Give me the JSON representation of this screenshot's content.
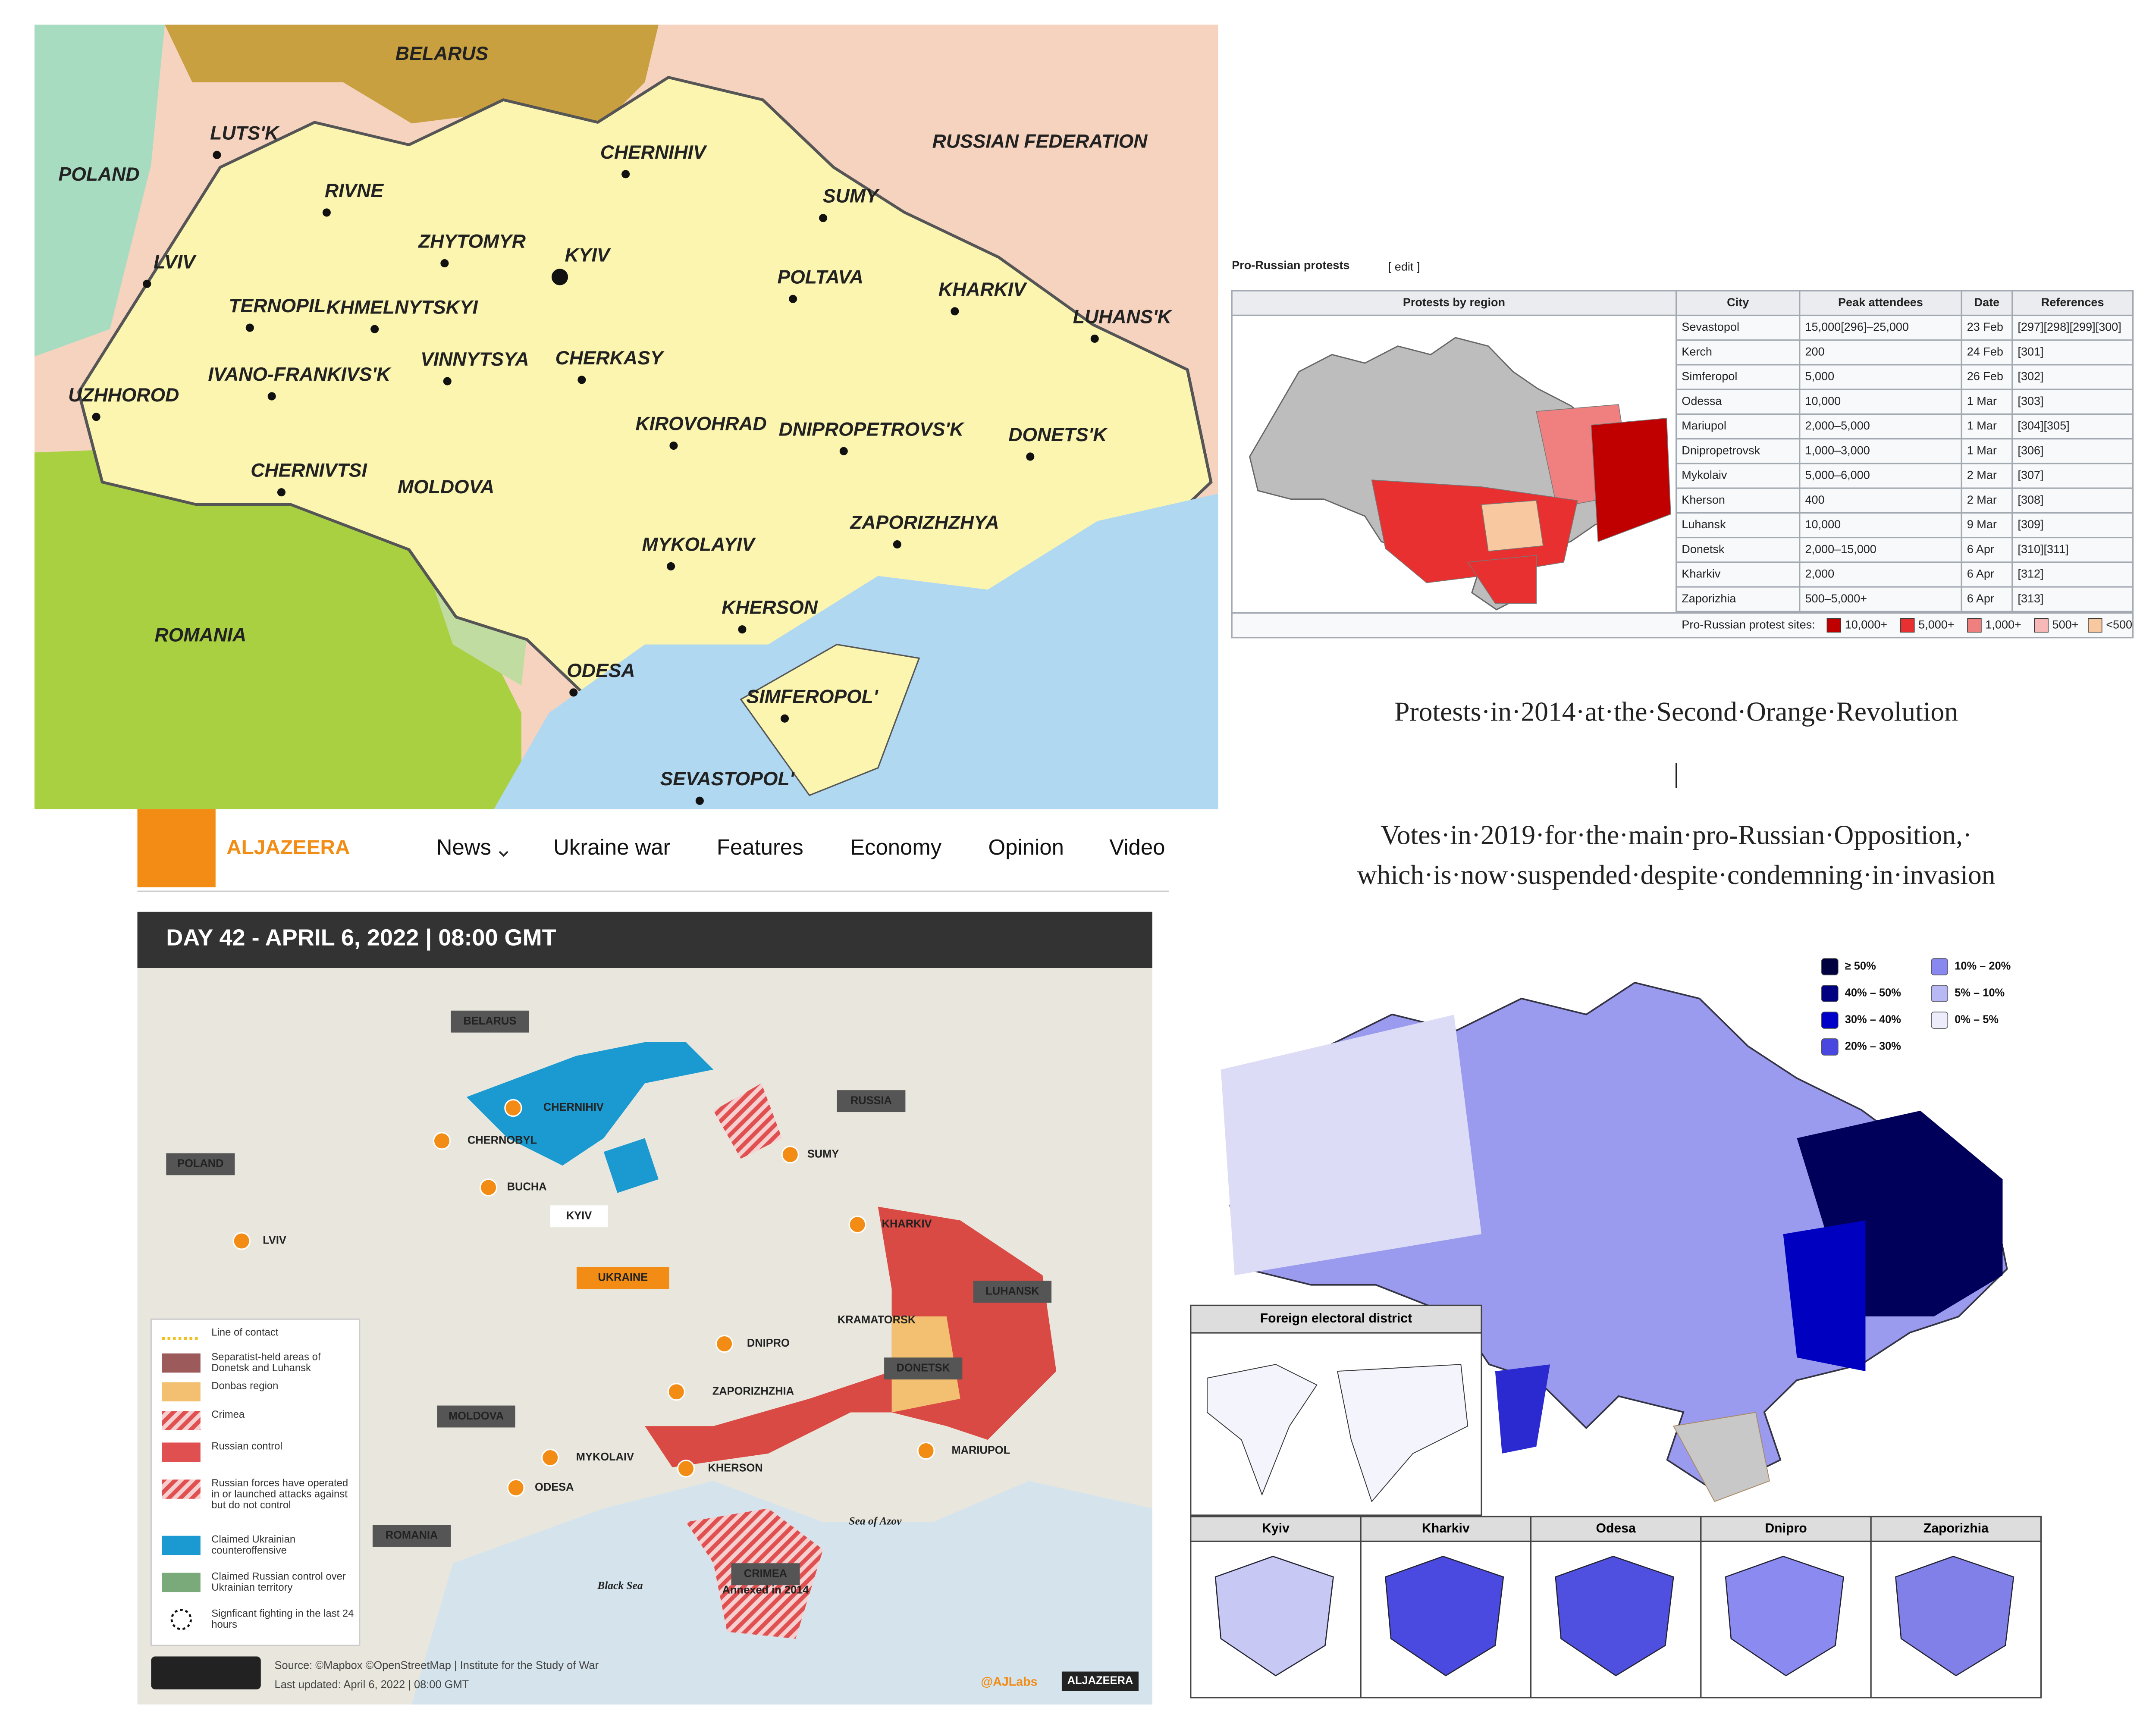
{
  "map1": {
    "labels": [
      "BELARUS",
      "RUSSIAN FEDERATION",
      "POLAND",
      "MOLDOVA",
      "ROMANIA",
      "LUTS'K",
      "RIVNE",
      "CHERNIHIV",
      "SUMY",
      "ZHYTOMYR",
      "KYIV",
      "LVIV",
      "POLTAVA",
      "KHARKIV",
      "TERNOPIL",
      "KHMELNYTSKYI",
      "LUHANS'K",
      "VINNYTSYA",
      "CHERKASY",
      "IVANO-FRANKIVS'K",
      "UZHHOROD",
      "KIROVOHRAD",
      "DNIPROPETROVS'K",
      "DONETS'K",
      "CHERNIVTSI",
      "ZAPORIZHZHYA",
      "MYKOLAYIV",
      "KHERSON",
      "ODESA",
      "SIMFEROPOL'",
      "SEVASTOPOL'"
    ]
  },
  "wiki": {
    "title": "Pro-Russian protests",
    "edit": "[ edit ]",
    "headers": [
      "Protests by region",
      "City",
      "Peak attendees",
      "Date",
      "References"
    ],
    "rows": [
      [
        "Sevastopol",
        "15,000[296]–25,000",
        "23 Feb",
        "[297][298][299][300]"
      ],
      [
        "Kerch",
        "200",
        "24 Feb",
        "[301]"
      ],
      [
        "Simferopol",
        "5,000",
        "26 Feb",
        "[302]"
      ],
      [
        "Odessa",
        "10,000",
        "1 Mar",
        "[303]"
      ],
      [
        "Mariupol",
        "2,000–5,000",
        "1 Mar",
        "[304][305]"
      ],
      [
        "Dnipropetrovsk",
        "1,000–3,000",
        "1 Mar",
        "[306]"
      ],
      [
        "Mykolaiv",
        "5,000–6,000",
        "2 Mar",
        "[307]"
      ],
      [
        "Kherson",
        "400",
        "2 Mar",
        "[308]"
      ],
      [
        "Luhansk",
        "10,000",
        "9 Mar",
        "[309]"
      ],
      [
        "Donetsk",
        "2,000–15,000",
        "6 Apr",
        "[310][311]"
      ],
      [
        "Kharkiv",
        "2,000",
        "6 Apr",
        "[312]"
      ],
      [
        "Zaporizhia",
        "500–5,000+",
        "6 Apr",
        "[313]"
      ]
    ],
    "legend_label": "Pro-Russian protest sites:",
    "legend": [
      {
        "label": "10,000+",
        "color": "#c00000"
      },
      {
        "label": "5,000+",
        "color": "#e83030"
      },
      {
        "label": "1,000+",
        "color": "#f08080"
      },
      {
        "label": "500+",
        "color": "#f8b8b8"
      },
      {
        "label": "<500",
        "color": "#f8c8a0"
      }
    ]
  },
  "captions": {
    "protests": "Protests·in·2014·at·the·Second·Orange·Revolution",
    "divider": "|",
    "votes_line1": "Votes·in·2019·for·the·main·pro-Russian·Opposition,·",
    "votes_line2": "which·is·now·suspended·despite·condemning·in·invasion"
  },
  "aljazeera": {
    "brand": "ALJAZEERA",
    "nav": [
      "News",
      "Ukraine war",
      "Features",
      "Economy",
      "Opinion",
      "Video"
    ],
    "header": "DAY 42 - APRIL 6, 2022  |  08:00 GMT",
    "labels": [
      "BELARUS",
      "RUSSIA",
      "POLAND",
      "LVIV",
      "CHERNIHIV",
      "CHERNOBYL",
      "BUCHA",
      "KYIV",
      "SUMY",
      "KHARKIV",
      "UKRAINE",
      "LUHANSK",
      "KRAMATORSK",
      "DNIPRO",
      "DONETSK",
      "ZAPORIZHZHIA",
      "MOLDOVA",
      "MYKOLAIV",
      "MARIUPOL",
      "KHERSON",
      "ODESA",
      "ROMANIA",
      "Sea of Azov",
      "Black Sea",
      "CRIMEA",
      "Annexed in 2014"
    ],
    "legend": [
      {
        "label": "Line of contact",
        "color": "#f0c020",
        "style": "line"
      },
      {
        "label": "Separatist-held areas of Donetsk and Luhansk",
        "color": "#9c5a5a"
      },
      {
        "label": "Donbas region",
        "color": "#f2c070"
      },
      {
        "label": "Crimea",
        "color": "#e05050",
        "style": "hatched"
      },
      {
        "label": "Russian control",
        "color": "#e05050"
      },
      {
        "label": "Russian forces have operated in or launched attacks against but do not control",
        "color": "#e05050",
        "style": "hatched"
      },
      {
        "label": "Claimed Ukrainian counteroffensive",
        "color": "#1a9ad0"
      },
      {
        "label": "Claimed Russian control over Ukrainian territory",
        "color": "#7aaa7a"
      },
      {
        "label": "Signficant fighting in the last 24 hours",
        "color": "#111",
        "style": "circle"
      }
    ],
    "source": "Source: ©Mapbox ©OpenStreetMap  |  Institute for the Study of War",
    "updated": "Last updated: April 6, 2022  |  08:00 GMT",
    "handle": "@AJLabs",
    "logo_text": "ALJAZEERA"
  },
  "votes": {
    "legend": [
      {
        "label": "≥ 50%",
        "color": "#000040"
      },
      {
        "label": "40% – 50%",
        "color": "#000080"
      },
      {
        "label": "30% – 40%",
        "color": "#0000c8"
      },
      {
        "label": "20% – 30%",
        "color": "#4848e0"
      },
      {
        "label": "10% – 20%",
        "color": "#8888f0"
      },
      {
        "label": "5% – 10%",
        "color": "#b8b8f4"
      },
      {
        "label": "0% – 5%",
        "color": "#ececfa"
      }
    ],
    "foreign": "Foreign electoral district",
    "cities": [
      "Kyiv",
      "Kharkiv",
      "Odesa",
      "Dnipro",
      "Zaporizhia"
    ]
  }
}
